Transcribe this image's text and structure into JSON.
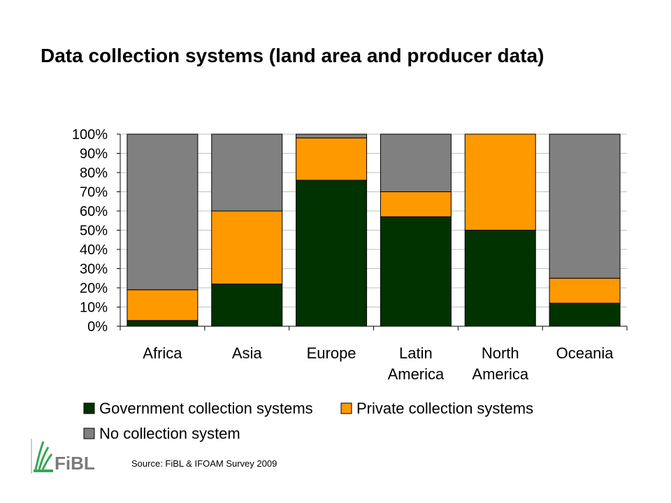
{
  "title": "Data collection systems (land area and producer data)",
  "source": "Source: FiBL & IFOAM Survey 2009",
  "logo_text": "FiBL",
  "colors": {
    "government": "#003300",
    "private": "#FF9900",
    "none": "#808080",
    "gridline": "#C0C0C0"
  },
  "chart_data": {
    "type": "bar",
    "stacked": true,
    "percent": true,
    "categories": [
      "Africa",
      "Asia",
      "Europe",
      "Latin America",
      "North America",
      "Oceania"
    ],
    "category_lines": [
      [
        "Africa"
      ],
      [
        "Asia"
      ],
      [
        "Europe"
      ],
      [
        "Latin",
        "America"
      ],
      [
        "North",
        "America"
      ],
      [
        "Oceania"
      ]
    ],
    "series": [
      {
        "name": "Government collection systems",
        "color": "#003300",
        "values": [
          3,
          22,
          76,
          57,
          50,
          12
        ]
      },
      {
        "name": "Private collection systems",
        "color": "#FF9900",
        "values": [
          16,
          38,
          22,
          13,
          50,
          13
        ]
      },
      {
        "name": "No collection system",
        "color": "#808080",
        "values": [
          81,
          40,
          2,
          30,
          0,
          75
        ]
      }
    ],
    "yticks": [
      "0%",
      "10%",
      "20%",
      "30%",
      "40%",
      "50%",
      "60%",
      "70%",
      "80%",
      "90%",
      "100%"
    ],
    "ylim": [
      0,
      100
    ],
    "grid": true,
    "legend": "bottom"
  }
}
